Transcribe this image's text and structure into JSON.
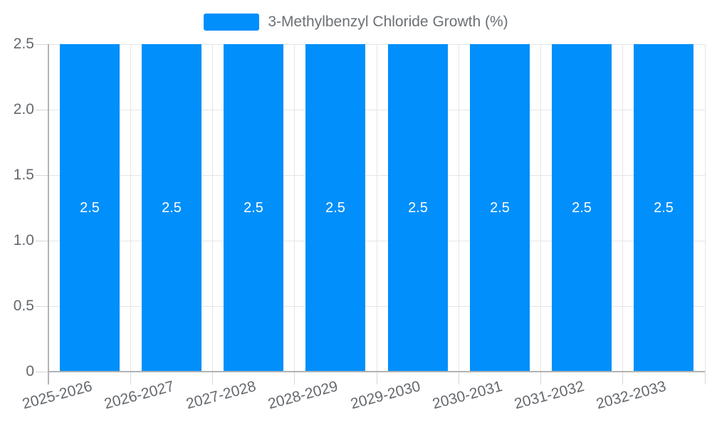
{
  "legend": {
    "label": "3-Methylbenzyl Chloride Growth (%)",
    "swatch_color": "#008FFB"
  },
  "chart_data": {
    "type": "bar",
    "title": "",
    "xlabel": "",
    "ylabel": "",
    "categories": [
      "2025-2026",
      "2026-2027",
      "2027-2028",
      "2028-2029",
      "2029-2030",
      "2030-2031",
      "2031-2032",
      "2032-2033"
    ],
    "series": [
      {
        "name": "3-Methylbenzyl Chloride Growth (%)",
        "values": [
          2.5,
          2.5,
          2.5,
          2.5,
          2.5,
          2.5,
          2.5,
          2.5
        ],
        "color": "#008FFB"
      }
    ],
    "data_labels": [
      "2.5",
      "2.5",
      "2.5",
      "2.5",
      "2.5",
      "2.5",
      "2.5",
      "2.5"
    ],
    "ylim": [
      0,
      2.5
    ],
    "yticks": {
      "values": [
        0,
        0.5,
        1.0,
        1.5,
        2.0,
        2.5
      ],
      "labels": [
        "0",
        "0.5",
        "1.0",
        "1.5",
        "2.0",
        "2.5"
      ]
    },
    "grid": true,
    "legend_position": "top"
  },
  "colors": {
    "bar": "#008FFB",
    "grid": "#e5e5e5",
    "axis_line": "#b3b3b3",
    "tick_mark": "#d6d6d6",
    "axis_label_text": "#64686d",
    "legend_text": "#6b7075",
    "data_label_text": "#ffffff",
    "background": "#ffffff"
  }
}
